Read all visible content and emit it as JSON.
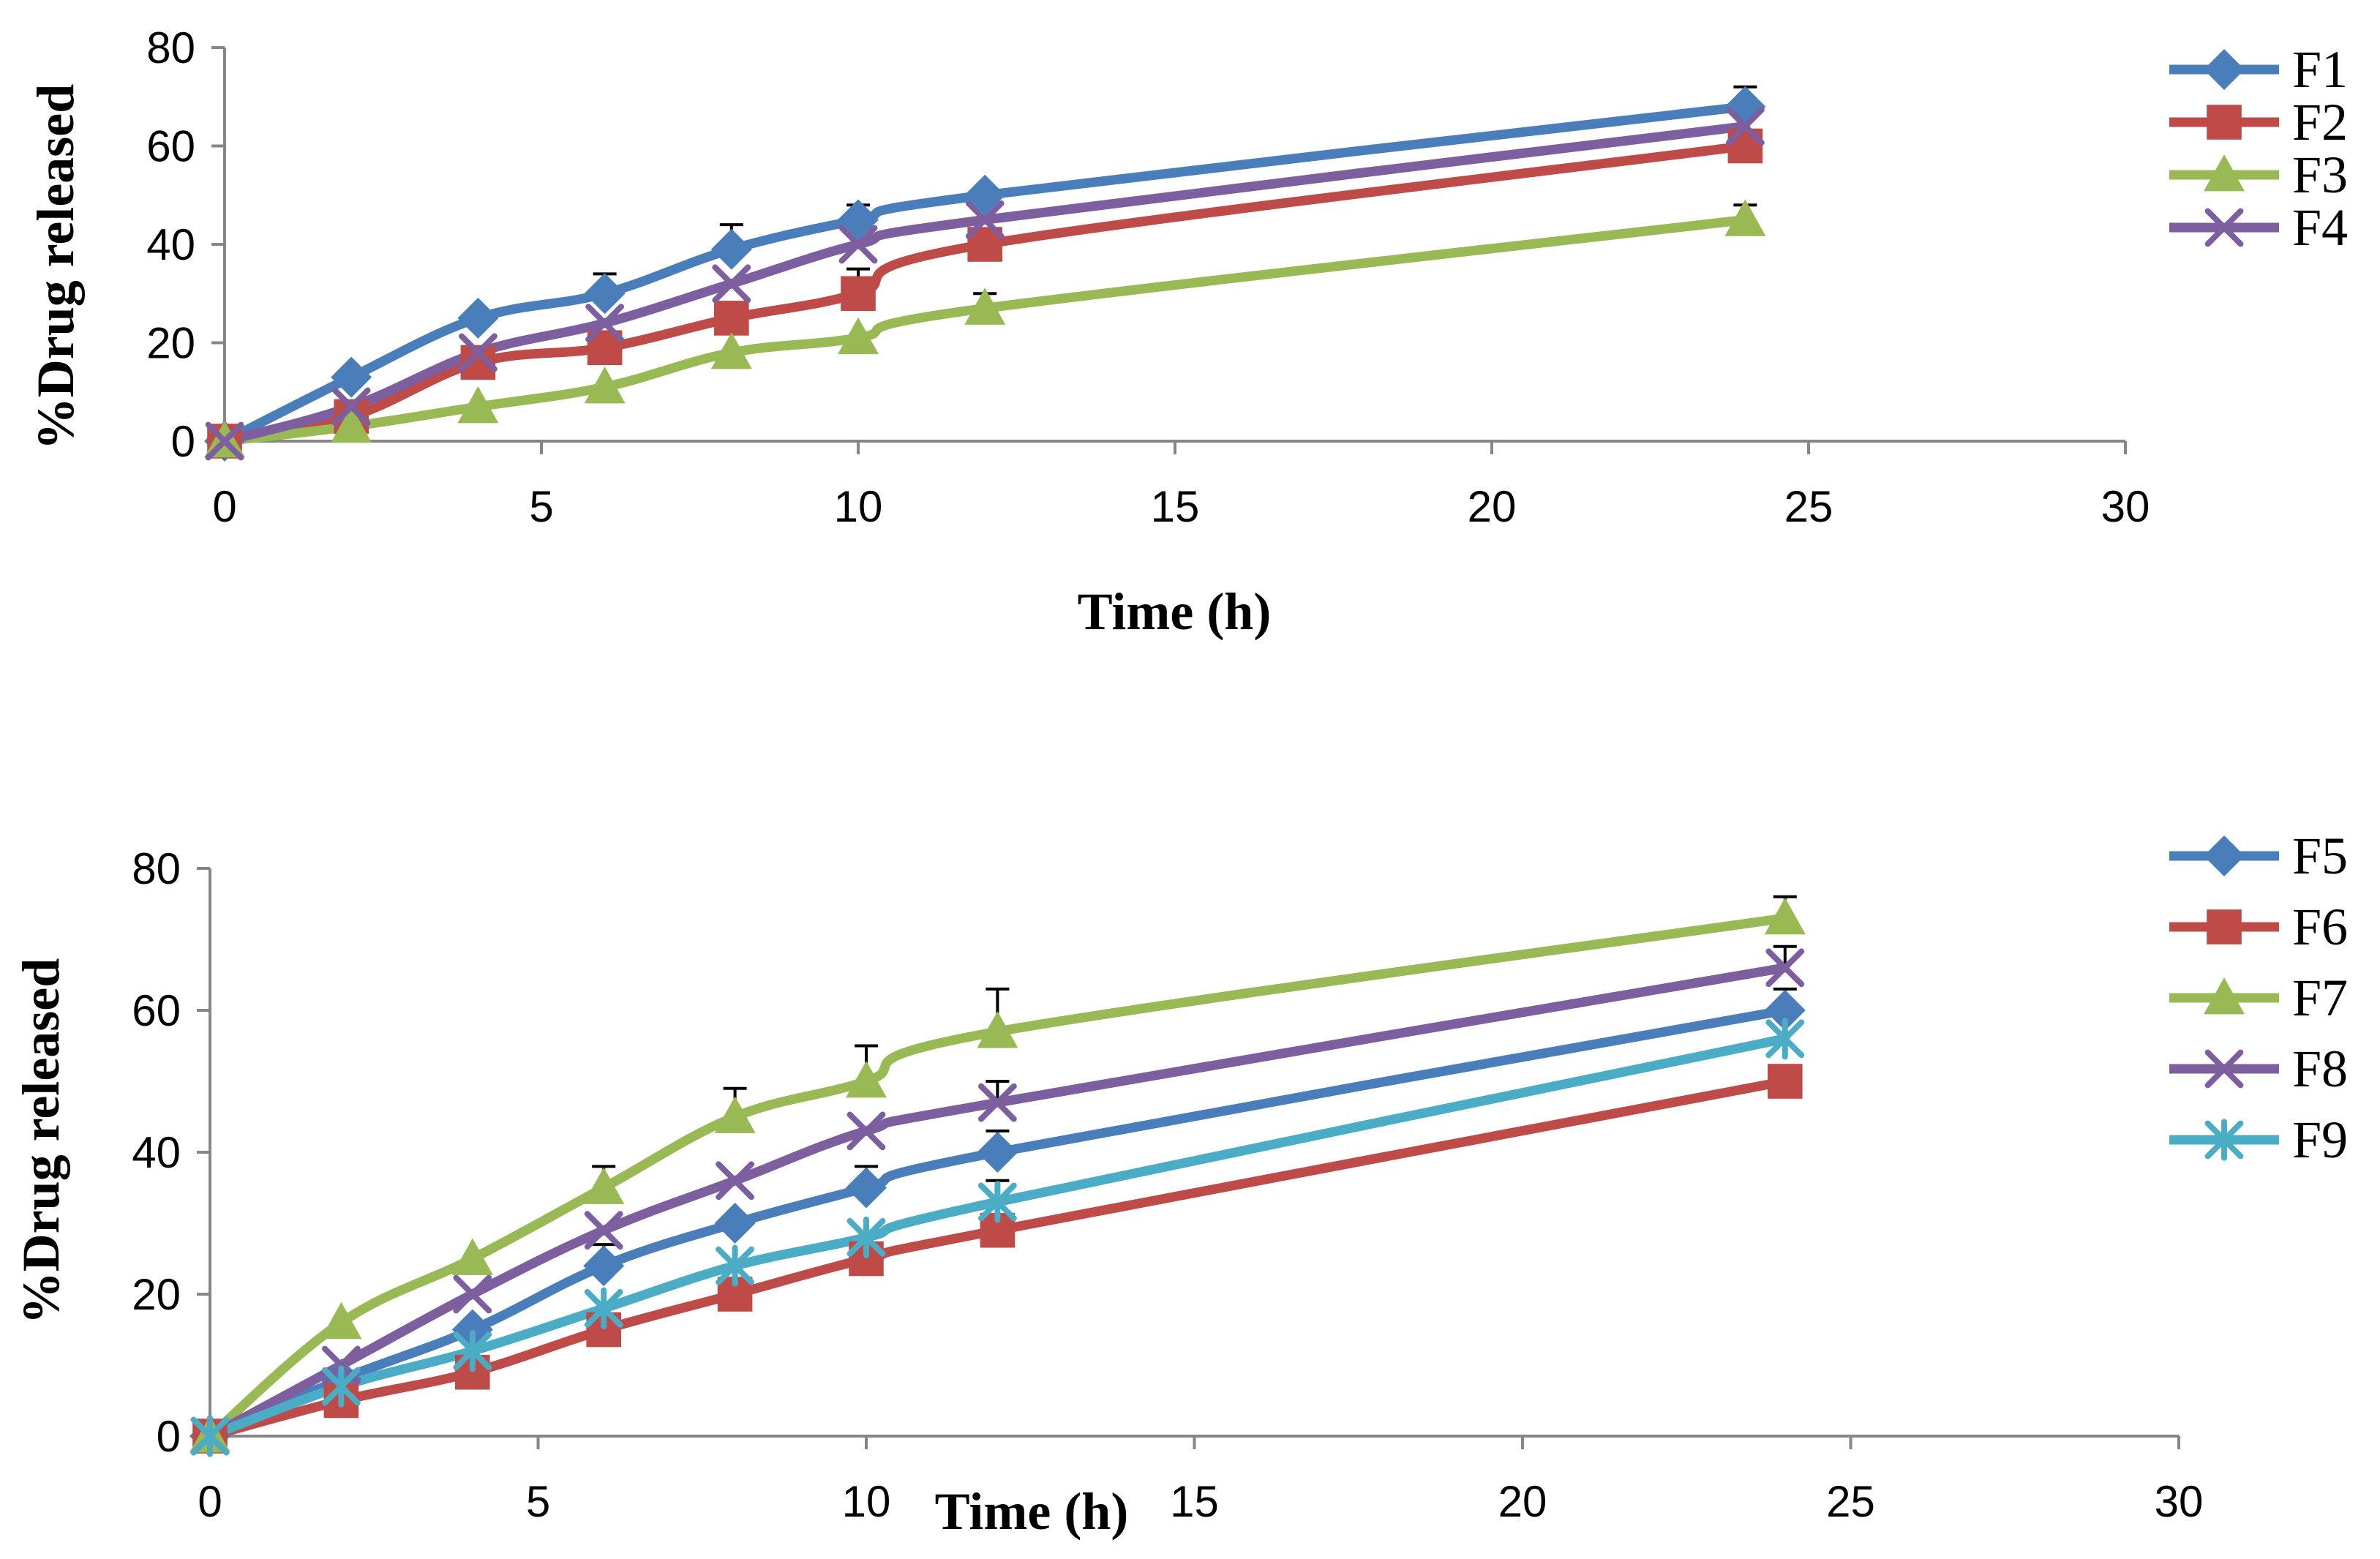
{
  "chart_data": [
    {
      "type": "line",
      "xlabel": "Time (h)",
      "ylabel": "%Drug released",
      "xlim": [
        0,
        30
      ],
      "ylim": [
        0,
        80
      ],
      "xticks": [
        0,
        5,
        10,
        15,
        20,
        25,
        30
      ],
      "yticks": [
        0,
        20,
        40,
        60,
        80
      ],
      "xtick_labels": [
        "0",
        "5",
        "10",
        "15",
        "20",
        "25",
        "30"
      ],
      "ytick_labels": [
        "0",
        "20",
        "40",
        "60",
        "80"
      ],
      "legend_position": "top-right",
      "x": [
        0,
        2,
        4,
        6,
        8,
        10,
        12,
        24
      ],
      "series": [
        {
          "name": "F1",
          "color": "#4a7ebb",
          "marker": "diamond",
          "values": [
            0,
            13,
            25,
            30,
            39,
            45,
            50,
            68
          ],
          "errors": [
            0,
            0,
            0,
            4,
            5,
            3,
            0,
            4
          ]
        },
        {
          "name": "F2",
          "color": "#be4b48",
          "marker": "square",
          "values": [
            0,
            5,
            16,
            19,
            25,
            30,
            40,
            60
          ],
          "errors": [
            0,
            0,
            2,
            0,
            0,
            5,
            0,
            0
          ]
        },
        {
          "name": "F3",
          "color": "#98b954",
          "marker": "triangle",
          "values": [
            0,
            3,
            7,
            11,
            18,
            21,
            27,
            45
          ],
          "errors": [
            0,
            0,
            0,
            0,
            0,
            0,
            3,
            3
          ]
        },
        {
          "name": "F4",
          "color": "#7d5fa0",
          "marker": "x",
          "values": [
            0,
            7,
            18,
            24,
            32,
            40,
            45,
            64
          ],
          "errors": [
            0,
            0,
            0,
            0,
            0,
            0,
            0,
            0
          ]
        }
      ]
    },
    {
      "type": "line",
      "xlabel": "Time (h)",
      "ylabel": "%Drug released",
      "xlim": [
        0,
        30
      ],
      "ylim": [
        0,
        80
      ],
      "xticks": [
        0,
        5,
        10,
        15,
        20,
        25,
        30
      ],
      "yticks": [
        0,
        20,
        40,
        60,
        80
      ],
      "xtick_labels": [
        "0",
        "5",
        "10",
        "15",
        "20",
        "25",
        "30"
      ],
      "ytick_labels": [
        "0",
        "20",
        "40",
        "60",
        "80"
      ],
      "legend_position": "top-right",
      "x": [
        0,
        2,
        4,
        6,
        8,
        10,
        12,
        24
      ],
      "series": [
        {
          "name": "F5",
          "color": "#4a7ebb",
          "marker": "diamond",
          "values": [
            0,
            8,
            15,
            24,
            30,
            35,
            40,
            60
          ],
          "errors": [
            0,
            0,
            0,
            3,
            0,
            3,
            3,
            3
          ]
        },
        {
          "name": "F6",
          "color": "#be4b48",
          "marker": "square",
          "values": [
            0,
            5,
            9,
            15,
            20,
            25,
            29,
            50
          ],
          "errors": [
            0,
            0,
            0,
            0,
            0,
            0,
            0,
            0
          ]
        },
        {
          "name": "F7",
          "color": "#98b954",
          "marker": "triangle",
          "values": [
            0,
            16,
            25,
            35,
            45,
            50,
            57,
            73
          ],
          "errors": [
            0,
            0,
            0,
            3,
            4,
            5,
            6,
            3
          ]
        },
        {
          "name": "F8",
          "color": "#7d5fa0",
          "marker": "x",
          "values": [
            0,
            10,
            20,
            29,
            36,
            43,
            47,
            66
          ],
          "errors": [
            0,
            0,
            0,
            0,
            0,
            0,
            3,
            3
          ]
        },
        {
          "name": "F9",
          "color": "#4bacc6",
          "marker": "asterisk",
          "values": [
            0,
            7,
            12,
            18,
            24,
            28,
            33,
            56
          ],
          "errors": [
            0,
            0,
            0,
            0,
            0,
            0,
            3,
            0
          ]
        }
      ]
    }
  ]
}
